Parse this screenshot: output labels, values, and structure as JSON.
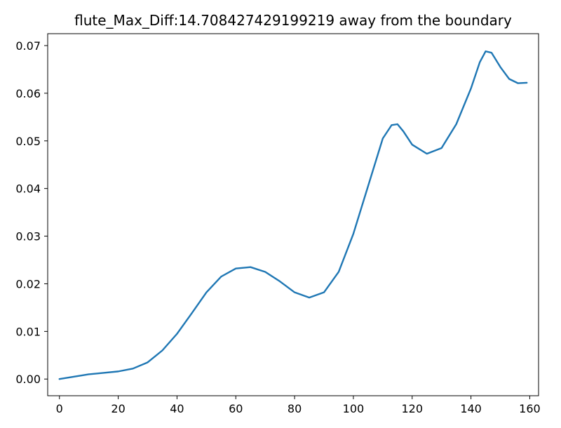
{
  "chart_data": {
    "type": "line",
    "title": "flute_Max_Diff:14.708427429199219 away from the boundary",
    "xlabel": "",
    "ylabel": "",
    "xlim": [
      -4,
      163
    ],
    "ylim": [
      -0.0035,
      0.0725
    ],
    "xticks": [
      0,
      20,
      40,
      60,
      80,
      100,
      120,
      140,
      160
    ],
    "xtick_labels": [
      "0",
      "20",
      "40",
      "60",
      "80",
      "100",
      "120",
      "140",
      "160"
    ],
    "yticks": [
      0.0,
      0.01,
      0.02,
      0.03,
      0.04,
      0.05,
      0.06,
      0.07
    ],
    "ytick_labels": [
      "0.00",
      "0.01",
      "0.02",
      "0.03",
      "0.04",
      "0.05",
      "0.06",
      "0.07"
    ],
    "grid": false,
    "series": [
      {
        "color": "#1f77b4",
        "x": [
          0,
          5,
          10,
          15,
          20,
          25,
          30,
          35,
          40,
          45,
          50,
          55,
          60,
          65,
          70,
          75,
          80,
          85,
          90,
          95,
          100,
          105,
          110,
          113,
          115,
          117,
          120,
          125,
          130,
          135,
          140,
          143,
          145,
          147,
          150,
          153,
          156,
          159
        ],
        "y": [
          0.0,
          0.0005,
          0.001,
          0.0013,
          0.0016,
          0.0022,
          0.0035,
          0.006,
          0.0095,
          0.0138,
          0.0182,
          0.0215,
          0.0232,
          0.0235,
          0.0225,
          0.0205,
          0.0182,
          0.0171,
          0.0182,
          0.0225,
          0.0305,
          0.0405,
          0.0505,
          0.0533,
          0.0535,
          0.052,
          0.0492,
          0.0473,
          0.0485,
          0.0535,
          0.061,
          0.0665,
          0.0688,
          0.0685,
          0.0655,
          0.063,
          0.0621,
          0.0622
        ]
      }
    ]
  }
}
